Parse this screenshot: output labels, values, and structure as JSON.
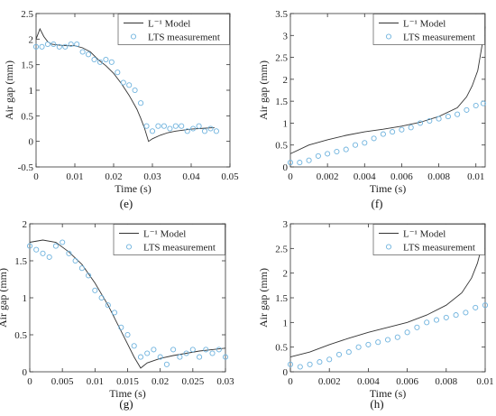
{
  "chart_data": [
    {
      "type": "scatter",
      "caption": "(e)",
      "xlabel": "Time (s)",
      "ylabel": "Air gap (mm)",
      "xlim": [
        0,
        0.05
      ],
      "ylim": [
        -0.5,
        2.5
      ],
      "xticks": [
        0,
        0.01,
        0.02,
        0.03,
        0.04,
        0.05
      ],
      "yticks": [
        -0.5,
        0,
        0.5,
        1,
        1.5,
        2,
        2.5
      ],
      "xtick_labels": [
        "0",
        "0.01",
        "0.02",
        "0.03",
        "0.04",
        "0.05"
      ],
      "ytick_labels": [
        "-0.5",
        "0",
        "0.5",
        "1",
        "1.5",
        "2",
        "2.5"
      ],
      "legend": {
        "placement": "top-right",
        "entries": [
          "L⁻¹ Model",
          "LTS measurement"
        ]
      },
      "series": [
        {
          "name": "L⁻¹ Model",
          "style": "line",
          "x": [
            0,
            0.001,
            0.002,
            0.003,
            0.004,
            0.006,
            0.008,
            0.01,
            0.012,
            0.014,
            0.016,
            0.018,
            0.02,
            0.022,
            0.024,
            0.026,
            0.027,
            0.028,
            0.029,
            0.03,
            0.032,
            0.034,
            0.036,
            0.038,
            0.04,
            0.042,
            0.044,
            0.046
          ],
          "y": [
            2.0,
            2.2,
            2.05,
            1.95,
            1.9,
            1.88,
            1.87,
            1.87,
            1.83,
            1.75,
            1.6,
            1.48,
            1.33,
            1.13,
            0.9,
            0.63,
            0.45,
            0.25,
            0.0,
            0.05,
            0.12,
            0.17,
            0.2,
            0.22,
            0.24,
            0.25,
            0.26,
            0.27
          ]
        },
        {
          "name": "LTS measurement",
          "style": "markers",
          "x": [
            0.0,
            0.0015,
            0.003,
            0.0045,
            0.006,
            0.0075,
            0.009,
            0.0105,
            0.012,
            0.0135,
            0.015,
            0.0165,
            0.018,
            0.0195,
            0.021,
            0.0225,
            0.024,
            0.0255,
            0.027,
            0.0285,
            0.03,
            0.0315,
            0.033,
            0.0345,
            0.036,
            0.0375,
            0.039,
            0.0405,
            0.042,
            0.0435,
            0.045,
            0.0465
          ],
          "y": [
            1.85,
            1.85,
            1.9,
            1.9,
            1.85,
            1.85,
            1.9,
            1.9,
            1.75,
            1.7,
            1.6,
            1.55,
            1.6,
            1.55,
            1.35,
            1.15,
            1.1,
            1.0,
            0.75,
            0.3,
            0.2,
            0.3,
            0.3,
            0.25,
            0.3,
            0.3,
            0.2,
            0.25,
            0.3,
            0.2,
            0.25,
            0.2
          ]
        }
      ]
    },
    {
      "type": "scatter",
      "caption": "(f)",
      "xlabel": "Time (s)",
      "ylabel": "Air gap (mm)",
      "xlim": [
        0,
        0.0105
      ],
      "ylim": [
        0,
        3.5
      ],
      "xticks": [
        0,
        0.002,
        0.004,
        0.006,
        0.008,
        0.01
      ],
      "yticks": [
        0,
        0.5,
        1,
        1.5,
        2,
        2.5,
        3,
        3.5
      ],
      "xtick_labels": [
        "0",
        "0.002",
        "0.004",
        "0.006",
        "0.008",
        "0.01"
      ],
      "ytick_labels": [
        "0",
        "0.5",
        "1",
        "1.5",
        "2",
        "2.5",
        "3",
        "3.5"
      ],
      "legend": {
        "placement": "top-right",
        "entries": [
          "L⁻¹ Model",
          "LTS measurement"
        ]
      },
      "series": [
        {
          "name": "L⁻¹ Model",
          "style": "line",
          "x": [
            0,
            0.001,
            0.002,
            0.003,
            0.004,
            0.005,
            0.006,
            0.007,
            0.008,
            0.009,
            0.0095,
            0.0098,
            0.0101,
            0.0103,
            0.0105
          ],
          "y": [
            0.3,
            0.5,
            0.62,
            0.72,
            0.8,
            0.86,
            0.93,
            1.02,
            1.15,
            1.35,
            1.6,
            1.85,
            2.2,
            2.7,
            3.2
          ]
        },
        {
          "name": "LTS measurement",
          "style": "markers",
          "x": [
            0.0,
            0.0005,
            0.001,
            0.0015,
            0.002,
            0.0025,
            0.003,
            0.0035,
            0.004,
            0.0045,
            0.005,
            0.0055,
            0.006,
            0.0065,
            0.007,
            0.0075,
            0.008,
            0.0085,
            0.009,
            0.0095,
            0.01,
            0.0104
          ],
          "y": [
            0.1,
            0.1,
            0.15,
            0.25,
            0.3,
            0.35,
            0.4,
            0.5,
            0.55,
            0.65,
            0.75,
            0.8,
            0.85,
            0.9,
            1.0,
            1.05,
            1.1,
            1.15,
            1.2,
            1.3,
            1.4,
            1.45
          ]
        }
      ]
    },
    {
      "type": "scatter",
      "caption": "(g)",
      "xlabel": "Time (s)",
      "ylabel": "Air gap (mm)",
      "xlim": [
        0,
        0.03
      ],
      "ylim": [
        0,
        2
      ],
      "xticks": [
        0,
        0.005,
        0.01,
        0.015,
        0.02,
        0.025,
        0.03
      ],
      "yticks": [
        0,
        0.5,
        1,
        1.5,
        2
      ],
      "xtick_labels": [
        "0",
        "0.005",
        "0.01",
        "0.015",
        "0.02",
        "0.025",
        "0.03"
      ],
      "ytick_labels": [
        "0",
        "0.5",
        "1",
        "1.5",
        "2"
      ],
      "legend": {
        "placement": "top-right",
        "entries": [
          "L⁻¹ Model",
          "LTS measurement"
        ]
      },
      "series": [
        {
          "name": "L⁻¹ Model",
          "style": "line",
          "x": [
            0,
            0.002,
            0.004,
            0.006,
            0.008,
            0.01,
            0.012,
            0.014,
            0.016,
            0.017,
            0.018,
            0.02,
            0.022,
            0.024,
            0.026,
            0.028,
            0.03
          ],
          "y": [
            1.75,
            1.78,
            1.75,
            1.62,
            1.45,
            1.2,
            0.9,
            0.55,
            0.2,
            0.05,
            0.12,
            0.18,
            0.22,
            0.25,
            0.28,
            0.3,
            0.32
          ]
        },
        {
          "name": "LTS measurement",
          "style": "markers",
          "x": [
            0.0,
            0.001,
            0.002,
            0.003,
            0.004,
            0.005,
            0.006,
            0.007,
            0.008,
            0.009,
            0.01,
            0.011,
            0.012,
            0.013,
            0.014,
            0.015,
            0.016,
            0.017,
            0.018,
            0.019,
            0.02,
            0.021,
            0.022,
            0.023,
            0.024,
            0.025,
            0.026,
            0.027,
            0.028,
            0.029,
            0.03
          ],
          "y": [
            1.7,
            1.65,
            1.6,
            1.55,
            1.7,
            1.75,
            1.6,
            1.5,
            1.4,
            1.3,
            1.1,
            1.0,
            0.9,
            0.8,
            0.6,
            0.5,
            0.35,
            0.2,
            0.25,
            0.3,
            0.2,
            0.1,
            0.3,
            0.2,
            0.25,
            0.3,
            0.2,
            0.3,
            0.25,
            0.3,
            0.2
          ]
        }
      ]
    },
    {
      "type": "scatter",
      "caption": "(h)",
      "xlabel": "Time (s)",
      "ylabel": "Air gap (mm)",
      "xlim": [
        0,
        0.01
      ],
      "ylim": [
        0,
        3
      ],
      "xticks": [
        0,
        0.002,
        0.004,
        0.006,
        0.008,
        0.01
      ],
      "yticks": [
        0,
        0.5,
        1,
        1.5,
        2,
        2.5,
        3
      ],
      "xtick_labels": [
        "0",
        "0.002",
        "0.004",
        "0.006",
        "0.008",
        "0.01"
      ],
      "ytick_labels": [
        "0",
        "0.5",
        "1",
        "1.5",
        "2",
        "2.5",
        "3"
      ],
      "legend": {
        "placement": "top-right",
        "entries": [
          "L⁻¹ Model",
          "LTS measurement"
        ]
      },
      "series": [
        {
          "name": "L⁻¹ Model",
          "style": "line",
          "x": [
            0,
            0.001,
            0.002,
            0.003,
            0.004,
            0.005,
            0.006,
            0.007,
            0.008,
            0.0088,
            0.0093,
            0.0096,
            0.0098,
            0.0099,
            0.01
          ],
          "y": [
            0.3,
            0.4,
            0.55,
            0.68,
            0.8,
            0.9,
            1.0,
            1.15,
            1.35,
            1.6,
            1.9,
            2.2,
            2.5,
            2.8,
            3.0
          ]
        },
        {
          "name": "LTS measurement",
          "style": "markers",
          "x": [
            0.0,
            0.0005,
            0.001,
            0.0015,
            0.002,
            0.0025,
            0.003,
            0.0035,
            0.004,
            0.0045,
            0.005,
            0.0055,
            0.006,
            0.0065,
            0.007,
            0.0075,
            0.008,
            0.0085,
            0.009,
            0.0095,
            0.01
          ],
          "y": [
            0.15,
            0.1,
            0.15,
            0.2,
            0.25,
            0.35,
            0.4,
            0.5,
            0.55,
            0.6,
            0.65,
            0.7,
            0.8,
            0.9,
            1.0,
            1.05,
            1.1,
            1.15,
            1.2,
            1.3,
            1.35
          ]
        }
      ]
    }
  ]
}
